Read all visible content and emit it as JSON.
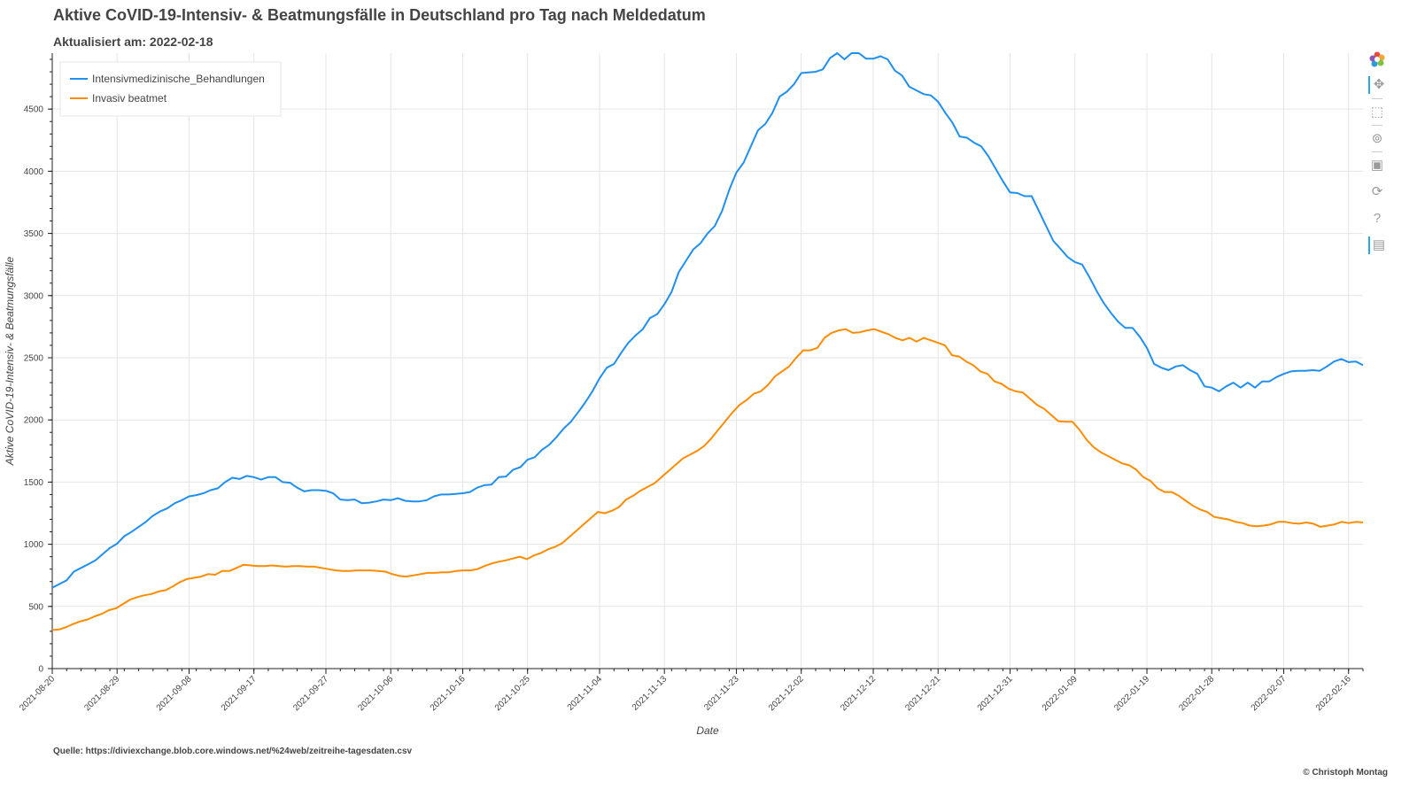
{
  "title": "Aktive CoVID-19-Intensiv- & Beatmungsfälle in Deutschland pro Tag nach Meldedatum",
  "subtitle": "Aktualisiert am: 2022-02-18",
  "source": "Quelle: https://diviexchange.blob.core.windows.net/%24web/zeitreihe-tagesdaten.csv",
  "copyright": "© Christoph Montag",
  "toolbar": {
    "logo": "bokeh-logo-icon",
    "pan": "pan-icon",
    "box_zoom": "box-zoom-icon",
    "wheel_zoom": "wheel-zoom-icon",
    "save": "save-icon",
    "reset": "reset-icon",
    "help": "help-icon",
    "hover": "hover-icon"
  },
  "chart_data": {
    "type": "line",
    "xlabel": "Date",
    "ylabel": "Aktive CoVID-19-Intensiv- & Beatmungsfälle",
    "x_start": "2021-08-20",
    "x_end": "2022-02-18",
    "ylim": [
      0,
      4950
    ],
    "y_ticks": [
      0,
      500,
      1000,
      1500,
      2000,
      2500,
      3000,
      3500,
      4000,
      4500
    ],
    "x_ticks": [
      "2021-08-20",
      "2021-08-29",
      "2021-09-08",
      "2021-09-17",
      "2021-09-27",
      "2021-10-06",
      "2021-10-16",
      "2021-10-25",
      "2021-11-04",
      "2021-11-13",
      "2021-11-23",
      "2021-12-02",
      "2021-12-12",
      "2021-12-21",
      "2021-12-31",
      "2022-01-09",
      "2022-01-19",
      "2022-01-28",
      "2022-02-07",
      "2022-02-16"
    ],
    "grid": true,
    "legend_position": "top-left",
    "series": [
      {
        "name": "Intensivmedizinische_Behandlungen",
        "color": "#1f8ff0",
        "values": [
          650,
          680,
          710,
          780,
          810,
          840,
          870,
          920,
          970,
          1005,
          1065,
          1100,
          1140,
          1180,
          1230,
          1265,
          1290,
          1330,
          1355,
          1385,
          1395,
          1410,
          1435,
          1450,
          1500,
          1535,
          1525,
          1550,
          1540,
          1520,
          1540,
          1540,
          1500,
          1495,
          1455,
          1425,
          1435,
          1435,
          1430,
          1410,
          1360,
          1355,
          1360,
          1330,
          1335,
          1345,
          1360,
          1355,
          1370,
          1350,
          1345,
          1345,
          1355,
          1385,
          1400,
          1400,
          1405,
          1410,
          1420,
          1455,
          1475,
          1480,
          1540,
          1545,
          1600,
          1620,
          1680,
          1700,
          1760,
          1800,
          1860,
          1930,
          1985,
          2060,
          2140,
          2230,
          2335,
          2420,
          2450,
          2540,
          2620,
          2680,
          2730,
          2820,
          2850,
          2930,
          3030,
          3190,
          3280,
          3370,
          3420,
          3500,
          3560,
          3680,
          3850,
          3990,
          4070,
          4200,
          4330,
          4380,
          4470,
          4600,
          4640,
          4700,
          4790,
          4795,
          4800,
          4820,
          4910,
          4950,
          4900,
          4950,
          4950,
          4905,
          4905,
          4925,
          4900,
          4810,
          4770,
          4680,
          4650,
          4620,
          4610,
          4560,
          4470,
          4390,
          4280,
          4270,
          4230,
          4200,
          4120,
          4020,
          3920,
          3830,
          3825,
          3800,
          3800,
          3680,
          3560,
          3440,
          3375,
          3310,
          3270,
          3250,
          3150,
          3040,
          2940,
          2860,
          2790,
          2740,
          2740,
          2670,
          2580,
          2450,
          2420,
          2400,
          2430,
          2440,
          2400,
          2370,
          2270,
          2260,
          2230,
          2270,
          2300,
          2260,
          2300,
          2260,
          2310,
          2310,
          2345,
          2370,
          2390,
          2395,
          2395,
          2400,
          2395,
          2430,
          2470,
          2490,
          2465,
          2470,
          2440
        ]
      },
      {
        "name": "Invasiv beatmet",
        "color": "#ff8c00",
        "values": [
          310,
          315,
          335,
          360,
          380,
          395,
          420,
          440,
          470,
          485,
          520,
          555,
          575,
          590,
          600,
          620,
          630,
          660,
          695,
          720,
          730,
          740,
          760,
          755,
          785,
          785,
          810,
          835,
          830,
          825,
          825,
          830,
          825,
          820,
          825,
          825,
          820,
          820,
          810,
          800,
          790,
          785,
          785,
          790,
          790,
          790,
          785,
          780,
          760,
          745,
          740,
          750,
          760,
          770,
          770,
          775,
          775,
          785,
          790,
          790,
          800,
          825,
          845,
          860,
          870,
          885,
          900,
          880,
          910,
          930,
          960,
          980,
          1010,
          1060,
          1110,
          1160,
          1210,
          1260,
          1250,
          1270,
          1300,
          1360,
          1390,
          1430,
          1460,
          1490,
          1540,
          1590,
          1640,
          1690,
          1720,
          1750,
          1790,
          1850,
          1920,
          1990,
          2060,
          2120,
          2160,
          2210,
          2230,
          2280,
          2350,
          2390,
          2430,
          2500,
          2560,
          2560,
          2580,
          2660,
          2700,
          2720,
          2730,
          2700,
          2705,
          2720,
          2730,
          2710,
          2690,
          2660,
          2640,
          2660,
          2630,
          2660,
          2640,
          2620,
          2600,
          2520,
          2510,
          2470,
          2440,
          2390,
          2370,
          2310,
          2290,
          2250,
          2230,
          2220,
          2170,
          2120,
          2090,
          2040,
          1990,
          1985,
          1985,
          1920,
          1840,
          1780,
          1740,
          1710,
          1680,
          1650,
          1635,
          1600,
          1540,
          1510,
          1450,
          1420,
          1420,
          1390,
          1350,
          1310,
          1280,
          1260,
          1220,
          1210,
          1200,
          1180,
          1170,
          1150,
          1145,
          1150,
          1160,
          1180,
          1180,
          1170,
          1165,
          1175,
          1165,
          1140,
          1150,
          1160,
          1180,
          1170,
          1180,
          1175
        ]
      }
    ]
  }
}
